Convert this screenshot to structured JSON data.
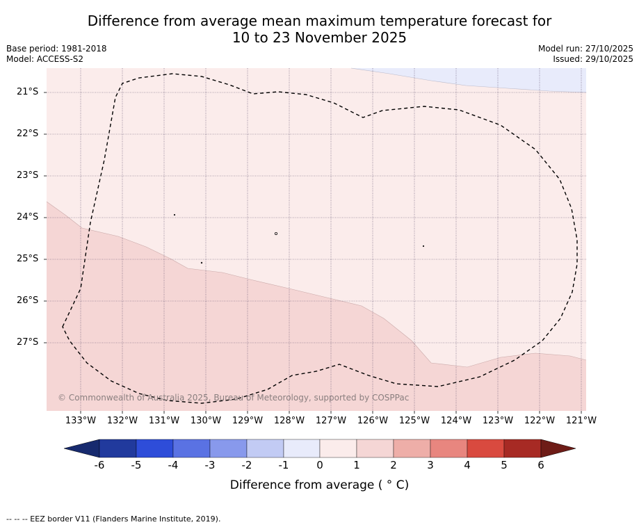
{
  "title_line1": "Difference from average mean maximum temperature forecast for",
  "title_line2": "10 to 23 November 2025",
  "base_period": "Base period: 1981-2018",
  "model": "Model: ACCESS-S2",
  "model_run": "Model run: 27/10/2025",
  "issued": "Issued: 29/10/2025",
  "copyright": "© Commonwealth of Australia 2025, Bureau of Meteorology, supported by COSPPac",
  "lat_labels": [
    "21°S",
    "22°S",
    "23°S",
    "24°S",
    "25°S",
    "26°S",
    "27°S"
  ],
  "lon_labels": [
    "133°W",
    "132°W",
    "131°W",
    "130°W",
    "129°W",
    "128°W",
    "127°W",
    "126°W",
    "125°W",
    "124°W",
    "123°W",
    "122°W",
    "121°W"
  ],
  "colorbar": {
    "ticks": [
      "-6",
      "-5",
      "-4",
      "-3",
      "-2",
      "-1",
      "0",
      "1",
      "2",
      "3",
      "4",
      "5",
      "6"
    ],
    "colors": [
      "#213a9d",
      "#2e4dd9",
      "#5a72e3",
      "#8899ec",
      "#c2cbf4",
      "#e8ebfb",
      "#fbeceb",
      "#f5d6d5",
      "#eeaea8",
      "#e8867f",
      "#d94a3f",
      "#a72a24"
    ],
    "under_color": "#172a6e",
    "over_color": "#6e1c17",
    "label": "Difference from average ( ° C)"
  },
  "colors": {
    "band_0_1": "#fbeceb",
    "band_1_2": "#f5d6d5",
    "band_neg1_0": "#e8ebfb"
  },
  "footer": "--  --  -- EEZ border V11 (Flanders Marine Institute, 2019)."
}
